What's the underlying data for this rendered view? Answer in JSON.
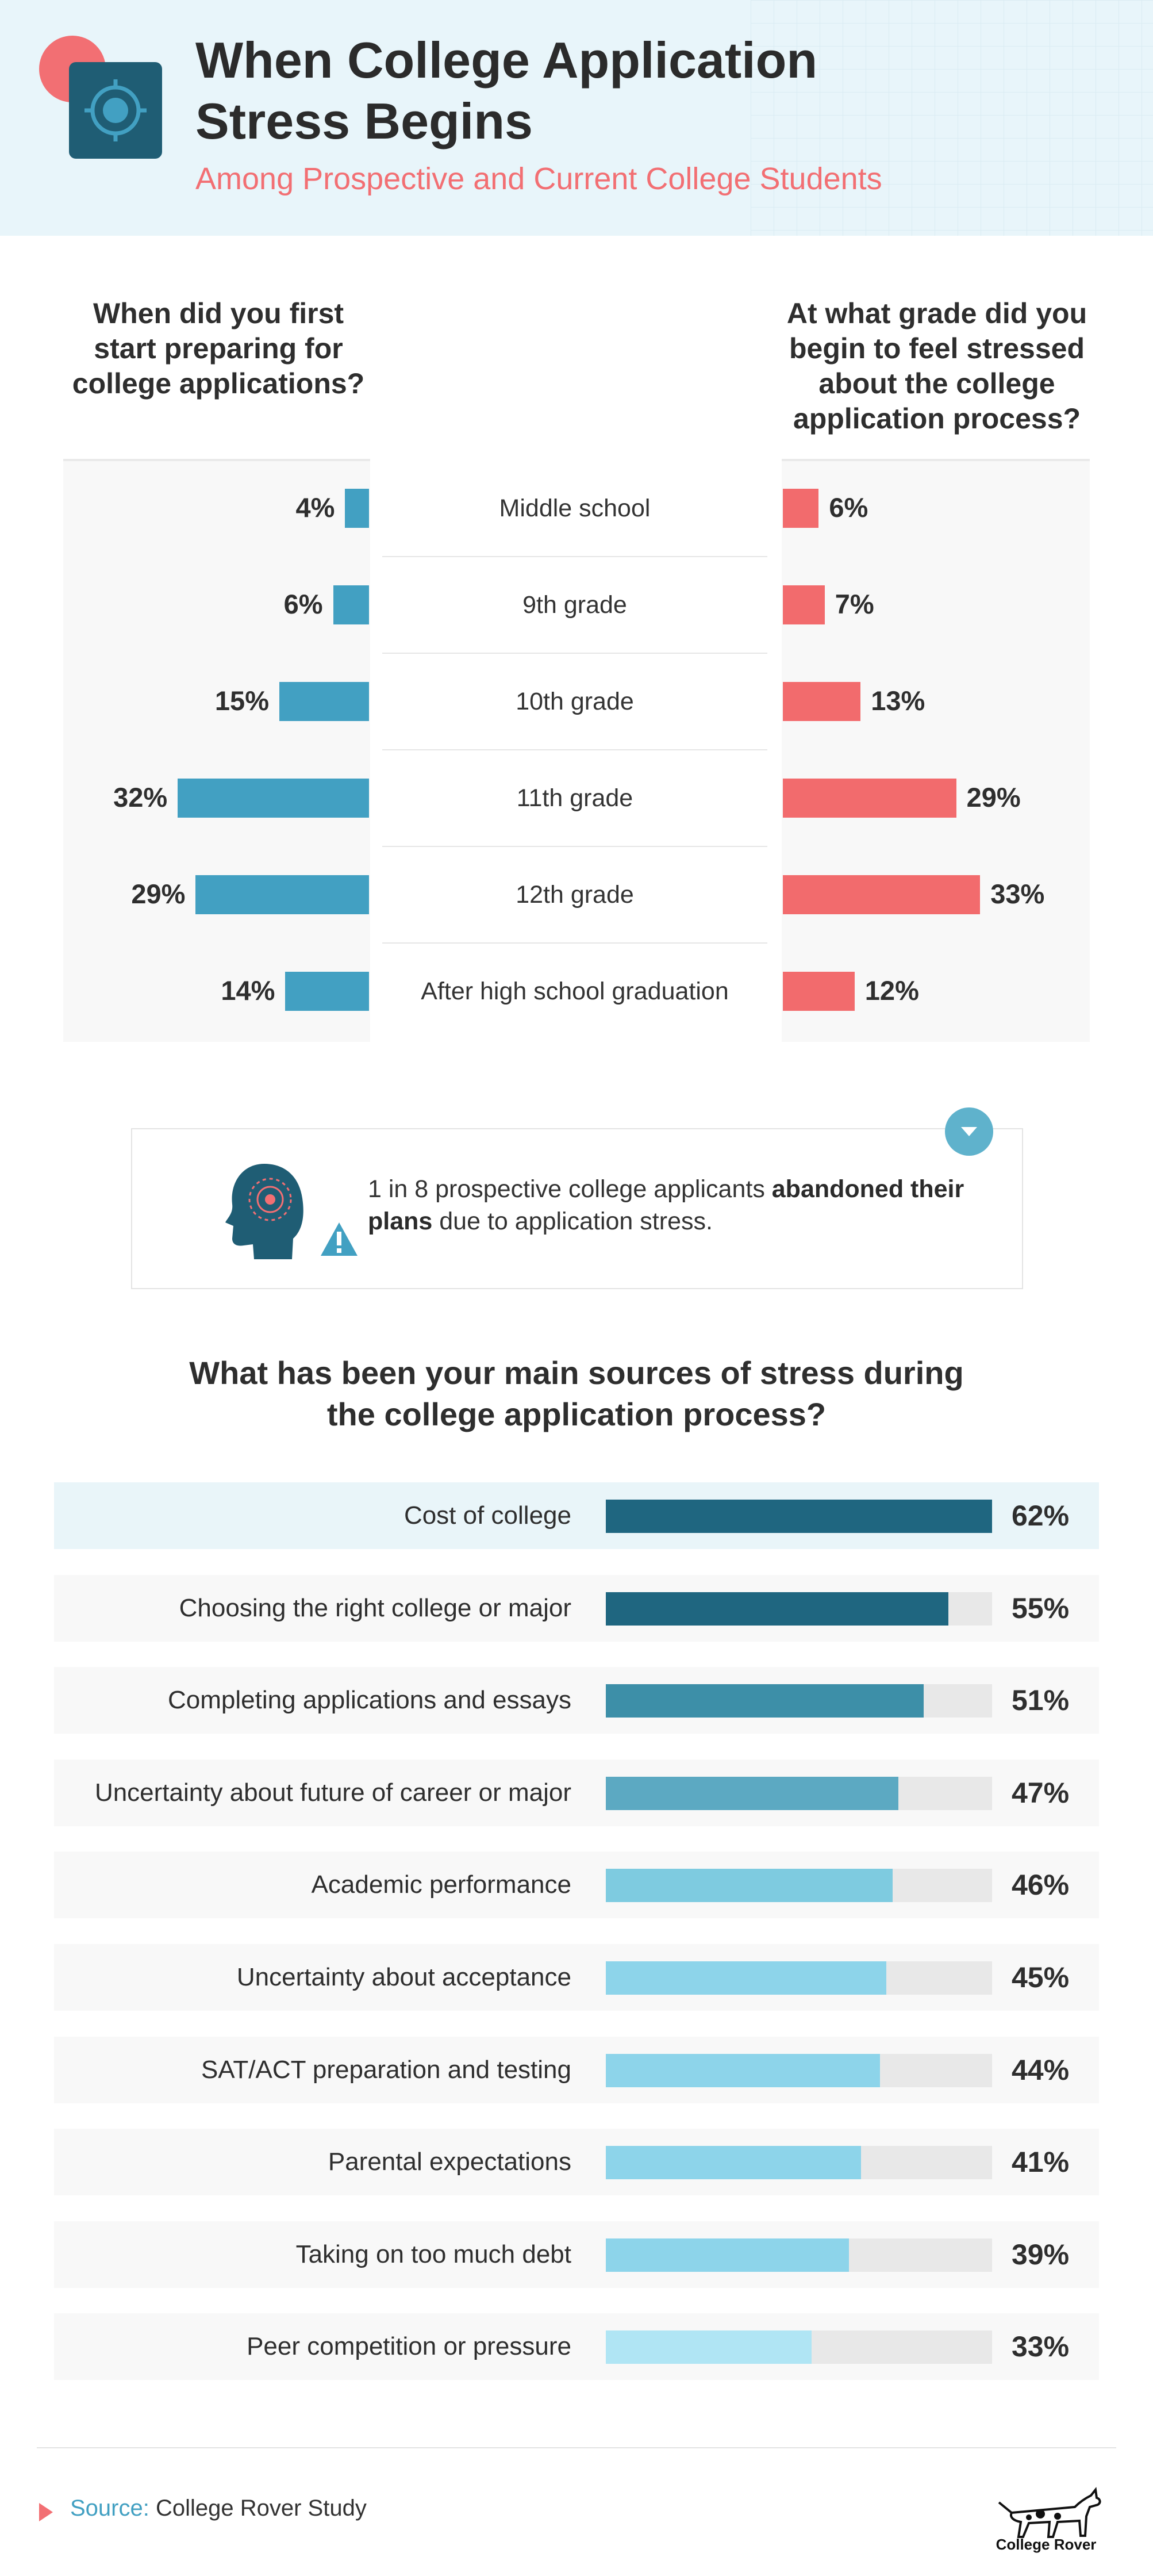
{
  "header": {
    "title_line1": "When College Application",
    "title_line2": "Stress Begins",
    "subtitle": "Among Prospective and Current College Students",
    "icon": "target-icon"
  },
  "colors": {
    "teal": "#42a0c2",
    "coral": "#f26b6d",
    "dark_teal": "#1f5d74",
    "source_bars": [
      "#1f6680",
      "#1f6680",
      "#3d8fa8",
      "#5ca9c2",
      "#7ecbe0",
      "#8dd4ea",
      "#8dd4ea",
      "#8dd4ea",
      "#8dd4ea",
      "#b0e5f4"
    ]
  },
  "chart_data": [
    {
      "type": "bar",
      "title_left": "When did you first start preparing for college applications?",
      "title_right": "At what grade did you begin to feel stressed about the college application process?",
      "categories": [
        "Middle school",
        "9th grade",
        "10th grade",
        "11th grade",
        "12th grade",
        "After high school graduation"
      ],
      "series": [
        {
          "name": "Started preparing",
          "values": [
            4,
            6,
            15,
            32,
            29,
            14
          ],
          "labels": [
            "4%",
            "6%",
            "15%",
            "32%",
            "29%",
            "14%"
          ]
        },
        {
          "name": "Began to feel stressed",
          "values": [
            6,
            7,
            13,
            29,
            33,
            12
          ],
          "labels": [
            "6%",
            "7%",
            "13%",
            "29%",
            "33%",
            "12%"
          ]
        }
      ],
      "unit": "%"
    },
    {
      "type": "bar",
      "title": "What has been your main sources of stress during the college application process?",
      "categories": [
        "Cost of college",
        "Choosing the right college or major",
        "Completing applications and essays",
        "Uncertainty about future of career or major",
        "Academic performance",
        "Uncertainty about acceptance",
        "SAT/ACT preparation and testing",
        "Parental expectations",
        "Taking on too much debt",
        "Peer competition or pressure"
      ],
      "values": [
        62,
        55,
        51,
        47,
        46,
        45,
        44,
        41,
        39,
        33
      ],
      "labels": [
        "62%",
        "55%",
        "51%",
        "47%",
        "46%",
        "45%",
        "44%",
        "41%",
        "39%",
        "33%"
      ],
      "xlim": [
        0,
        62
      ],
      "unit": "%"
    }
  ],
  "callout": {
    "text_before": "1 in 8 prospective college applicants ",
    "text_bold": "abandoned their plans",
    "text_after": " due to application stress.",
    "icon": "head-warning-icon",
    "button_icon": "chevron-down-icon"
  },
  "footer": {
    "source_label": "Source:",
    "source_text": "College Rover Study",
    "brand": "College Rover",
    "brand_icon": "dog-logo-icon"
  }
}
